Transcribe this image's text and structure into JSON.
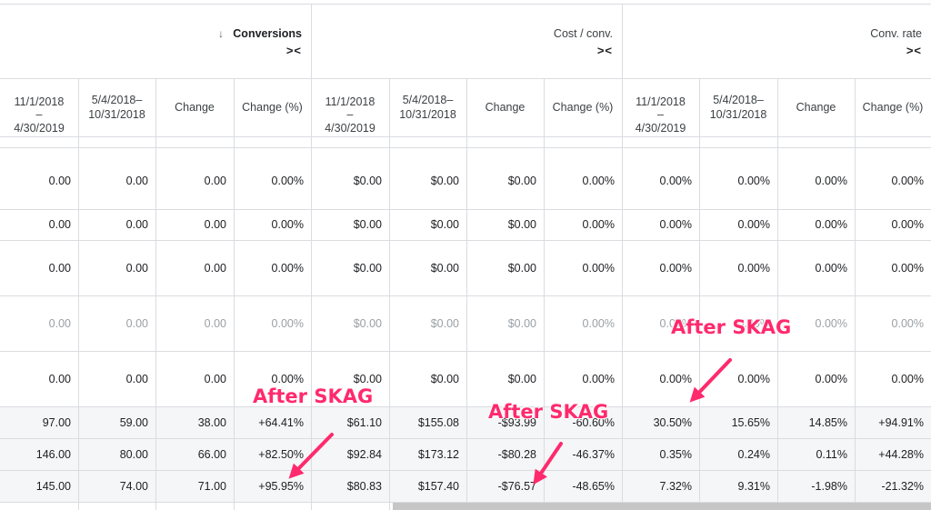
{
  "groups": [
    {
      "title": "Conversions",
      "sorted": true,
      "collapse_icon": "collapse-icon"
    },
    {
      "title": "Cost / conv.",
      "sorted": false,
      "collapse_icon": "collapse-icon"
    },
    {
      "title": "Conv. rate",
      "sorted": false,
      "collapse_icon": "collapse-icon"
    }
  ],
  "sort_icon": "↓",
  "collapse_glyph": "><",
  "subheaders": [
    {
      "lines": [
        "11/1/2018",
        "–",
        "4/30/2019"
      ],
      "type": "date"
    },
    {
      "lines": [
        "5/4/2018–",
        "10/31/2018"
      ],
      "type": "date"
    },
    {
      "lines": [
        "Change"
      ],
      "type": "label"
    },
    {
      "lines": [
        "Change (%)"
      ],
      "type": "label"
    }
  ],
  "rows": [
    {
      "faded": false,
      "summary": false,
      "values": [
        "0.00",
        "0.00",
        "0.00",
        "0.00%",
        "$0.00",
        "$0.00",
        "$0.00",
        "0.00%",
        "0.00%",
        "0.00%",
        "0.00%",
        "0.00%"
      ]
    },
    {
      "faded": false,
      "summary": false,
      "values": [
        "0.00",
        "0.00",
        "0.00",
        "0.00%",
        "$0.00",
        "$0.00",
        "$0.00",
        "0.00%",
        "0.00%",
        "0.00%",
        "0.00%",
        "0.00%"
      ]
    },
    {
      "faded": false,
      "summary": false,
      "values": [
        "0.00",
        "0.00",
        "0.00",
        "0.00%",
        "$0.00",
        "$0.00",
        "$0.00",
        "0.00%",
        "0.00%",
        "0.00%",
        "0.00%",
        "0.00%"
      ]
    },
    {
      "faded": true,
      "summary": false,
      "values": [
        "0.00",
        "0.00",
        "0.00",
        "0.00%",
        "$0.00",
        "$0.00",
        "$0.00",
        "0.00%",
        "0.00%",
        "0.00%",
        "0.00%",
        "0.00%"
      ]
    },
    {
      "faded": false,
      "summary": false,
      "values": [
        "0.00",
        "0.00",
        "0.00",
        "0.00%",
        "$0.00",
        "$0.00",
        "$0.00",
        "0.00%",
        "0.00%",
        "0.00%",
        "0.00%",
        "0.00%"
      ]
    },
    {
      "faded": false,
      "summary": true,
      "values": [
        "97.00",
        "59.00",
        "38.00",
        "+64.41%",
        "$61.10",
        "$155.08",
        "-$93.99",
        "-60.60%",
        "30.50%",
        "15.65%",
        "14.85%",
        "+94.91%"
      ]
    },
    {
      "faded": false,
      "summary": true,
      "values": [
        "146.00",
        "80.00",
        "66.00",
        "+82.50%",
        "$92.84",
        "$173.12",
        "-$80.28",
        "-46.37%",
        "0.35%",
        "0.24%",
        "0.11%",
        "+44.28%"
      ]
    },
    {
      "faded": false,
      "summary": true,
      "values": [
        "145.00",
        "74.00",
        "71.00",
        "+95.95%",
        "$80.83",
        "$157.40",
        "-$76.57",
        "-48.65%",
        "7.32%",
        "9.31%",
        "-1.98%",
        "-21.32%"
      ]
    }
  ],
  "annotations": [
    "After SKAG",
    "After SKAG",
    "After SKAG"
  ],
  "colors": {
    "annotation": "#ff2a6d",
    "grid": "#dadce0",
    "summary_row_bg": "#f5f6f7"
  }
}
